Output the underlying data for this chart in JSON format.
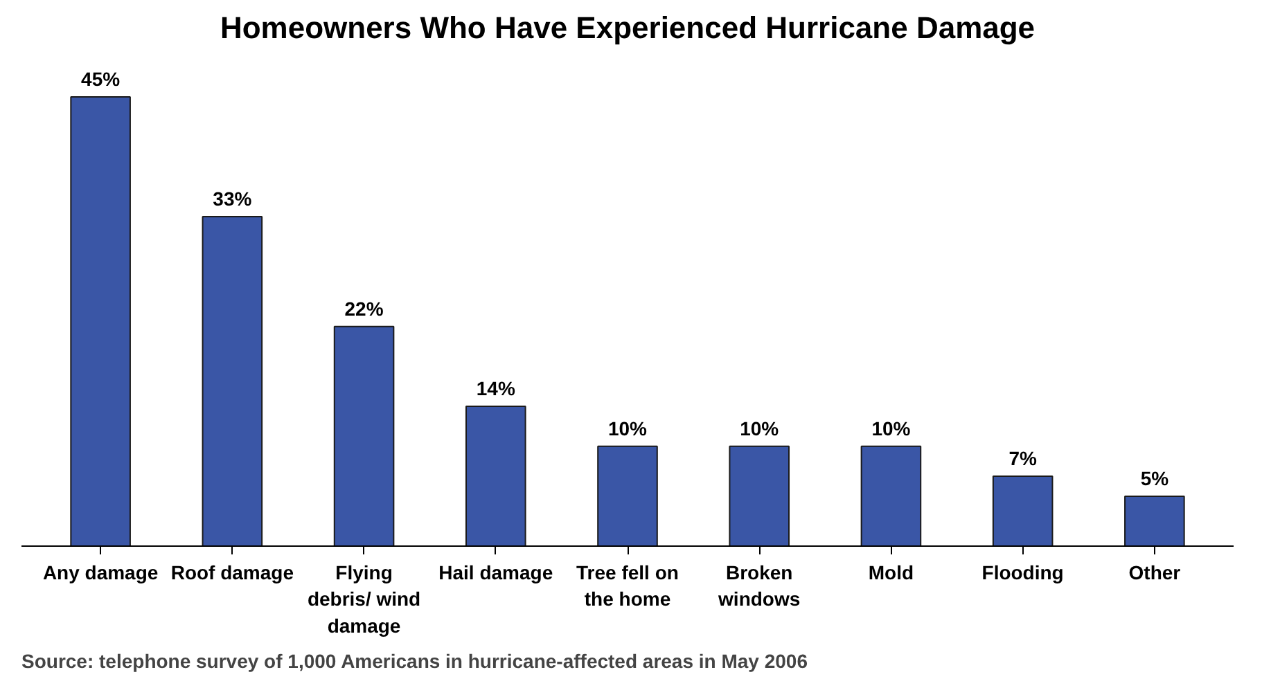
{
  "chart_data": {
    "type": "bar",
    "title": "Homeowners Who Have Experienced Hurricane Damage",
    "categories": [
      "Any damage",
      "Roof damage",
      "Flying debris/ wind damage",
      "Hail damage",
      "Tree fell on the home",
      "Broken windows",
      "Mold",
      "Flooding",
      "Other"
    ],
    "values": [
      45,
      33,
      22,
      14,
      10,
      10,
      10,
      7,
      5
    ],
    "value_labels": [
      "45%",
      "33%",
      "22%",
      "14%",
      "10%",
      "10%",
      "10%",
      "7%",
      "5%"
    ],
    "color": "#3a56a6",
    "grid": false,
    "annotations": [
      "Source: telephone survey of 1,000 Americans in hurricane-affected areas in May 2006"
    ]
  }
}
